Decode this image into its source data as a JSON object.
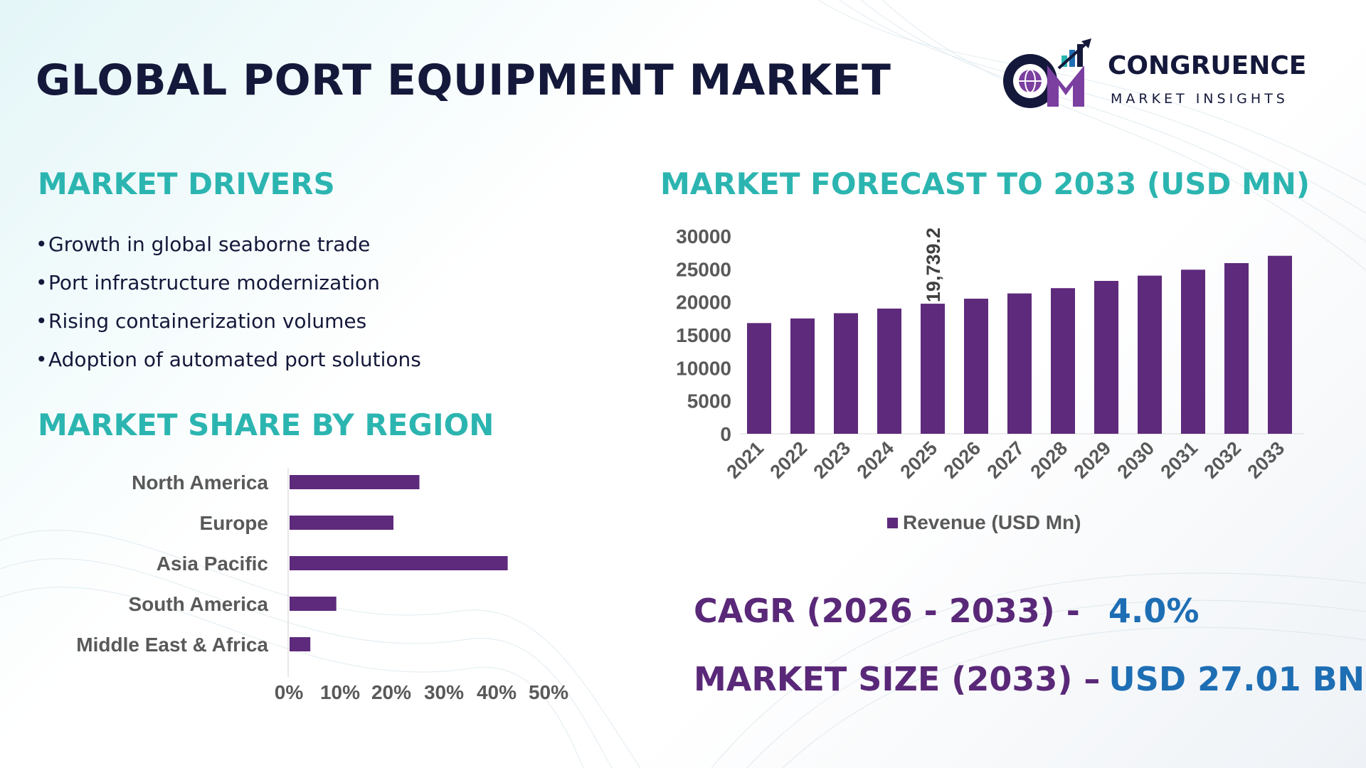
{
  "title": "GLOBAL PORT EQUIPMENT MARKET",
  "logo": {
    "name": "CONGRUENCE",
    "tagline": "MARKET INSIGHTS",
    "monogram": "CM"
  },
  "drivers": {
    "heading": "MARKET DRIVERS",
    "items": [
      "Growth in global seaborne trade",
      "Port infrastructure modernization",
      "Rising containerization volumes",
      "Adoption of automated port solutions"
    ]
  },
  "region_heading": "MARKET SHARE BY REGION",
  "forecast_heading": "MARKET FORECAST TO 2033 (USD MN)",
  "stats": {
    "cagr_label": "CAGR (2026 - 2033) -",
    "cagr_value": "4.0%",
    "size_label": "MARKET SIZE (2033) –",
    "size_value": "USD 27.01 BN"
  },
  "colors": {
    "bar": "#5e2a7c",
    "heading": "#2cb5b0",
    "title": "#14183a",
    "stat_label": "#5a2878",
    "stat_value": "#1e6eb4"
  },
  "chart_data": [
    {
      "type": "bar",
      "orientation": "horizontal",
      "categories": [
        "North America",
        "Europe",
        "Asia Pacific",
        "South America",
        "Middle East & Africa"
      ],
      "values": [
        25,
        20,
        42,
        9,
        4
      ],
      "unit": "%",
      "xlim": [
        0,
        50
      ],
      "xticks": [
        "0%",
        "10%",
        "20%",
        "30%",
        "40%",
        "50%"
      ],
      "grid": false
    },
    {
      "type": "bar",
      "categories": [
        "2021",
        "2022",
        "2023",
        "2024",
        "2025",
        "2026",
        "2027",
        "2028",
        "2029",
        "2030",
        "2031",
        "2032",
        "2033"
      ],
      "series": [
        {
          "name": "Revenue (USD Mn)",
          "values": [
            16800,
            17500,
            18300,
            19000,
            19739.2,
            20500,
            21300,
            22100,
            23200,
            24000,
            24900,
            25900,
            27010
          ]
        }
      ],
      "annotation": {
        "category": "2025",
        "text": "19,739.2"
      },
      "ylim": [
        0,
        30000
      ],
      "yticks": [
        "0",
        "5000",
        "10000",
        "15000",
        "20000",
        "25000",
        "30000"
      ],
      "grid": false,
      "legend": "bottom"
    }
  ]
}
